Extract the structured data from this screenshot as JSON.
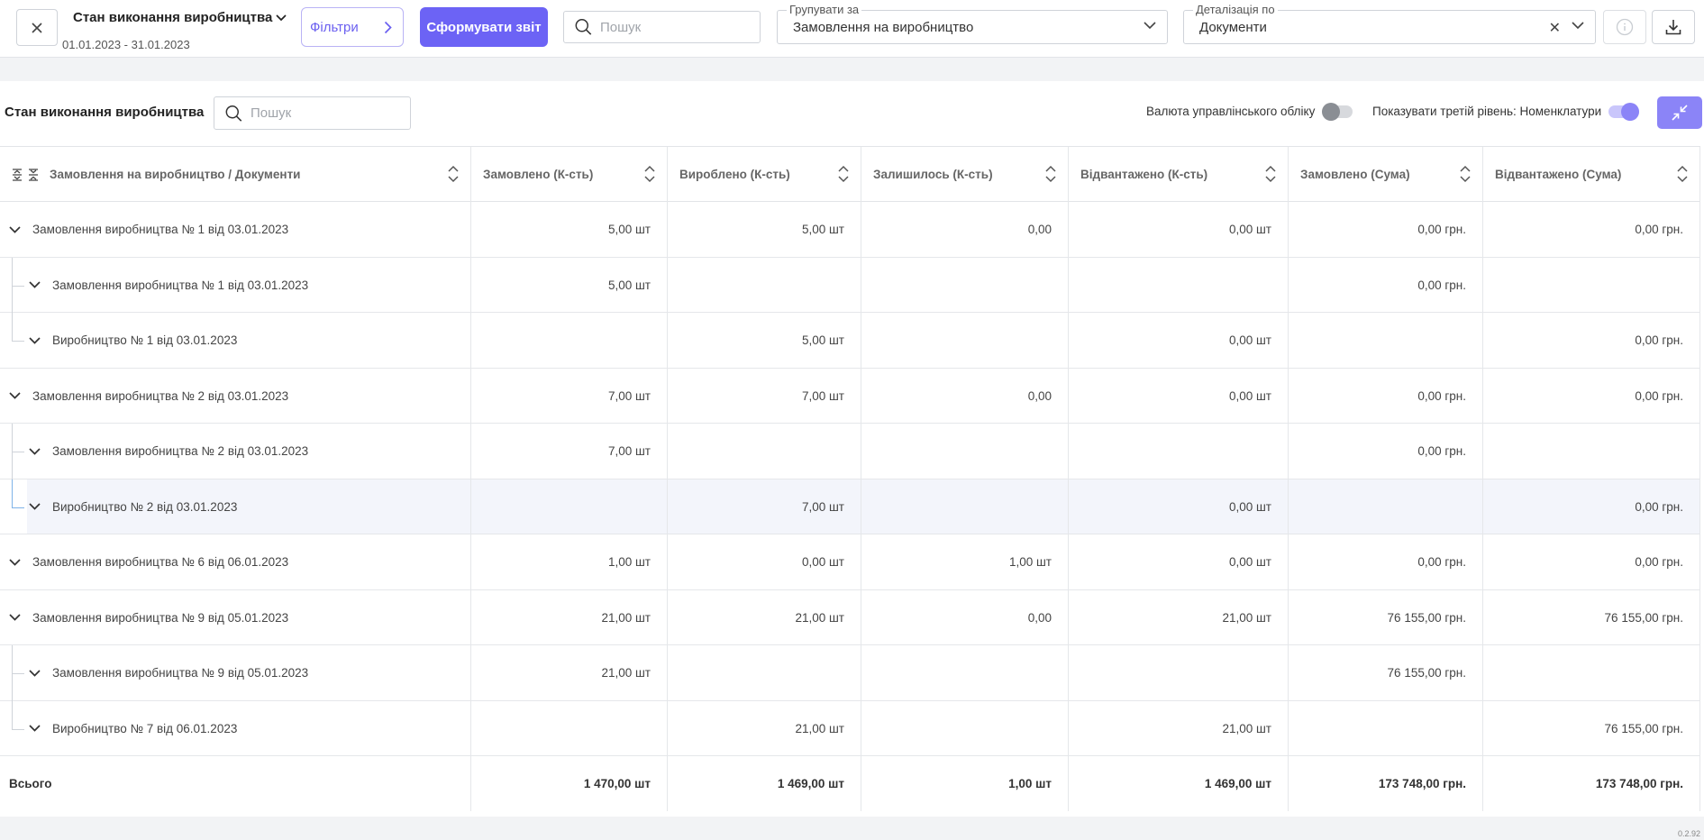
{
  "topbar": {
    "close_icon": "close-icon",
    "report_title": "Стан виконання виробництва",
    "report_dates": "01.01.2023 - 31.01.2023",
    "filters_label": "Фільтри",
    "generate_label": "Сформувати звіт",
    "search_placeholder": "Пошук",
    "group_by": {
      "label": "Групувати за",
      "value": "Замовлення на виробництво"
    },
    "detail_by": {
      "label": "Деталізація по",
      "value": "Документи"
    }
  },
  "card": {
    "title": "Стан виконання виробництва",
    "search_placeholder": "Пошук",
    "toggle_currency": {
      "label": "Валюта управлінського обліку",
      "on": false
    },
    "toggle_third_level": {
      "label": "Показувати третій рівень: Номенклатури",
      "on": true
    }
  },
  "table": {
    "columns": [
      "Замовлення на виробництво / Документи",
      "Замовлено (К-сть)",
      "Вироблено (К-сть)",
      "Залишилось (К-сть)",
      "Відвантажено (К-сть)",
      "Замовлено (Сума)",
      "Відвантажено (Сума)"
    ],
    "rows": [
      {
        "level": 0,
        "name": "Замовлення виробництва № 1 від 03.01.2023",
        "ordered_qty": "5,00 шт",
        "produced_qty": "5,00 шт",
        "remaining_qty": "0,00",
        "shipped_qty": "0,00 шт",
        "ordered_sum": "0,00 грн.",
        "shipped_sum": "0,00 грн."
      },
      {
        "level": 1,
        "name": "Замовлення виробництва № 1 від 03.01.2023",
        "ordered_qty": "5,00 шт",
        "produced_qty": "",
        "remaining_qty": "",
        "shipped_qty": "",
        "ordered_sum": "0,00 грн.",
        "shipped_sum": ""
      },
      {
        "level": 1,
        "last": true,
        "name": "Виробництво № 1 від 03.01.2023",
        "ordered_qty": "",
        "produced_qty": "5,00 шт",
        "remaining_qty": "",
        "shipped_qty": "0,00 шт",
        "ordered_sum": "",
        "shipped_sum": "0,00 грн."
      },
      {
        "level": 0,
        "name": "Замовлення виробництва № 2 від 03.01.2023",
        "ordered_qty": "7,00 шт",
        "produced_qty": "7,00 шт",
        "remaining_qty": "0,00",
        "shipped_qty": "0,00 шт",
        "ordered_sum": "0,00 грн.",
        "shipped_sum": "0,00 грн."
      },
      {
        "level": 1,
        "name": "Замовлення виробництва № 2 від 03.01.2023",
        "ordered_qty": "7,00 шт",
        "produced_qty": "",
        "remaining_qty": "",
        "shipped_qty": "",
        "ordered_sum": "0,00 грн.",
        "shipped_sum": ""
      },
      {
        "level": 1,
        "last": true,
        "highlighted": true,
        "name": "Виробництво № 2 від 03.01.2023",
        "ordered_qty": "",
        "produced_qty": "7,00 шт",
        "remaining_qty": "",
        "shipped_qty": "0,00 шт",
        "ordered_sum": "",
        "shipped_sum": "0,00 грн."
      },
      {
        "level": 0,
        "name": "Замовлення виробництва № 6 від 06.01.2023",
        "ordered_qty": "1,00 шт",
        "produced_qty": "0,00 шт",
        "remaining_qty": "1,00 шт",
        "shipped_qty": "0,00 шт",
        "ordered_sum": "0,00 грн.",
        "shipped_sum": "0,00 грн."
      },
      {
        "level": 0,
        "name": "Замовлення виробництва № 9 від 05.01.2023",
        "ordered_qty": "21,00 шт",
        "produced_qty": "21,00 шт",
        "remaining_qty": "0,00",
        "shipped_qty": "21,00 шт",
        "ordered_sum": "76 155,00 грн.",
        "shipped_sum": "76 155,00 грн."
      },
      {
        "level": 1,
        "name": "Замовлення виробництва № 9 від 05.01.2023",
        "ordered_qty": "21,00 шт",
        "produced_qty": "",
        "remaining_qty": "",
        "shipped_qty": "",
        "ordered_sum": "76 155,00 грн.",
        "shipped_sum": ""
      },
      {
        "level": 1,
        "last": true,
        "name": "Виробництво № 7 від 06.01.2023",
        "ordered_qty": "",
        "produced_qty": "21,00 шт",
        "remaining_qty": "",
        "shipped_qty": "21,00 шт",
        "ordered_sum": "",
        "shipped_sum": "76 155,00 грн."
      }
    ],
    "total": {
      "label": "Всього",
      "ordered_qty": "1 470,00 шт",
      "produced_qty": "1 469,00 шт",
      "remaining_qty": "1,00 шт",
      "shipped_qty": "1 469,00 шт",
      "ordered_sum": "173 748,00 грн.",
      "shipped_sum": "173 748,00 грн."
    }
  },
  "version": "0.2.92",
  "colors": {
    "accent": "#6c63f5",
    "accent_light": "#8b84f7",
    "highlight_row": "#f3f5fb"
  }
}
